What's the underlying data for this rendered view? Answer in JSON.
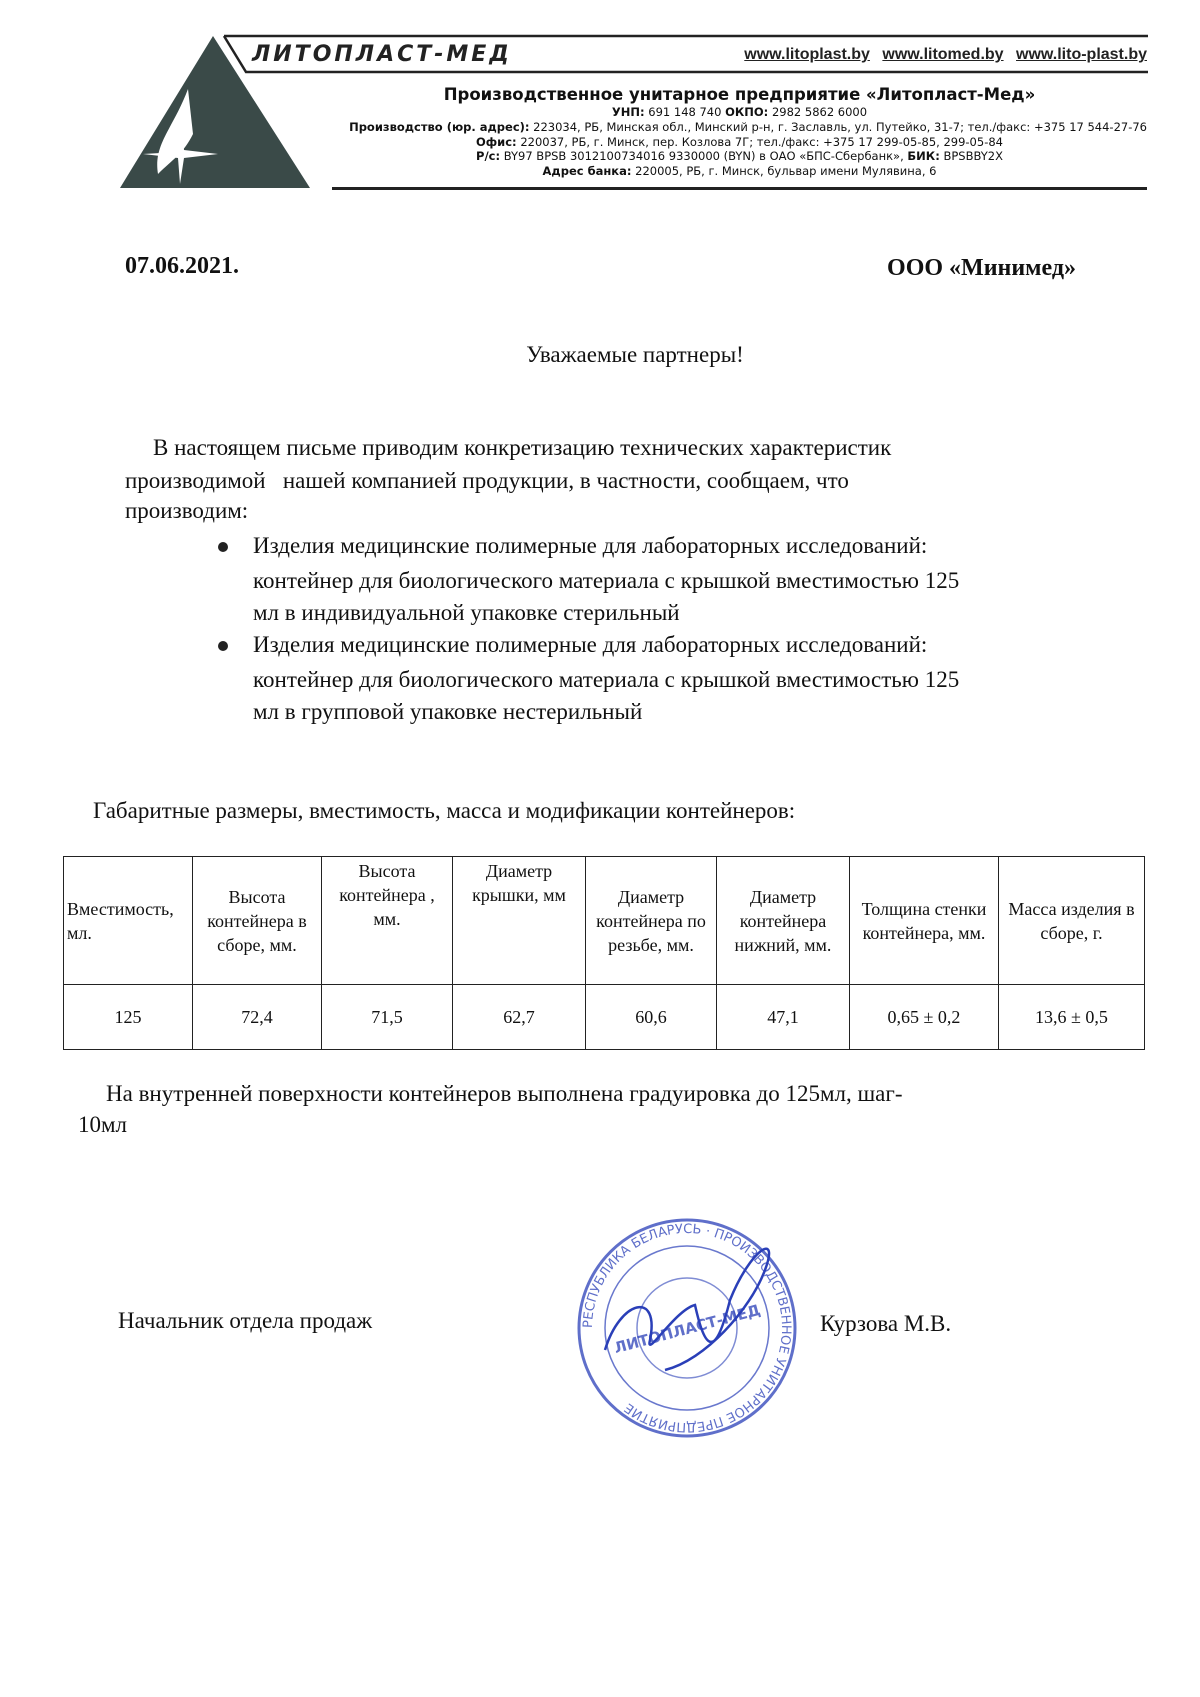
{
  "header": {
    "logo_text": "ЛИТОПЛАСТ-МЕД",
    "urls": [
      "www.litoplast.by",
      "www.litomed.by",
      "www.lito-plast.by"
    ],
    "company": "Производственное унитарное предприятие «Литопласт-Мед»",
    "lines": [
      {
        "label": "УНП:",
        "value": " 691 148 740 ",
        "label2": "ОКПО:",
        "value2": " 2982 5862 6000"
      },
      {
        "label": "Производство (юр. адрес):",
        "value": " 223034, РБ, Минская обл., Минский р-н, г. Заславль, ул. Путейко, 31-7; тел./факс: +375 17 544-27-76"
      },
      {
        "label": "Офис:",
        "value": " 220037, РБ, г. Минск, пер. Козлова 7Г; тел./факс: +375 17 299-05-85, 299-05-84"
      },
      {
        "label": "Р/с:",
        "value": " BY97 BPSB 3012100734016 9330000 (BYN) в ОАО «БПС-Сбербанк», ",
        "label2": "БИК:",
        "value2": " BPSBBY2X"
      },
      {
        "label": "Адрес банка:",
        "value": " 220005, РБ, г. Минск, бульвар имени Мулявина, 6"
      }
    ],
    "colors": {
      "logo": "#3a4a48",
      "rule": "#222222"
    }
  },
  "letter": {
    "date": "07.06.2021.",
    "recipient": "ООО «Минимед»",
    "greeting": "Уважаемые партнеры!",
    "intro": [
      "В настоящем письме приводим конкретизацию технических характеристик",
      "производимой   нашей компанией продукции, в частности, сообщаем, что",
      "производим:"
    ],
    "bullets": [
      [
        "Изделия медицинские полимерные для лабораторных исследований:",
        "контейнер для биологического материала с крышкой вместимостью 125",
        "мл в индивидуальной упаковке стерильный"
      ],
      [
        "Изделия медицинские полимерные для лабораторных исследований:",
        "контейнер для биологического материала с крышкой вместимостью 125",
        "мл в групповой упаковке нестерильный"
      ]
    ],
    "table_caption": "Габаритные размеры, вместимость, масса и модификации контейнеров:",
    "table": {
      "headers": [
        "Вместимость, мл.",
        "Высота контейнера в сборе, мм.",
        "Высота контейнера , мм.",
        "Диаметр крышки, мм",
        "Диаметр контейнера по резьбе, мм.",
        "Диаметр контейнера нижний, мм.",
        "Толщина стенки контейнера, мм.",
        "Масса изделия в сборе, г."
      ],
      "rows": [
        [
          "125",
          "72,4",
          "71,5",
          "62,7",
          "60,6",
          "47,1",
          "0,65 ± 0,2",
          "13,6 ± 0,5"
        ]
      ]
    },
    "note": [
      "На внутренней поверхности контейнеров выполнена градуировка до 125мл, шаг-",
      "10мл"
    ],
    "signer_title": "Начальник отдела продаж",
    "signer_name": "Курзова М.В.",
    "stamp": {
      "text": "РЕСПУБЛИКА БЕЛАРУСЬ · ПРОИЗВОДСТВЕННОЕ УНИТАРНОЕ ПРЕДПРИЯТИЕ",
      "center": "ЛИТОПЛАСТ-МЕД",
      "color": "#2a3fb8"
    }
  }
}
